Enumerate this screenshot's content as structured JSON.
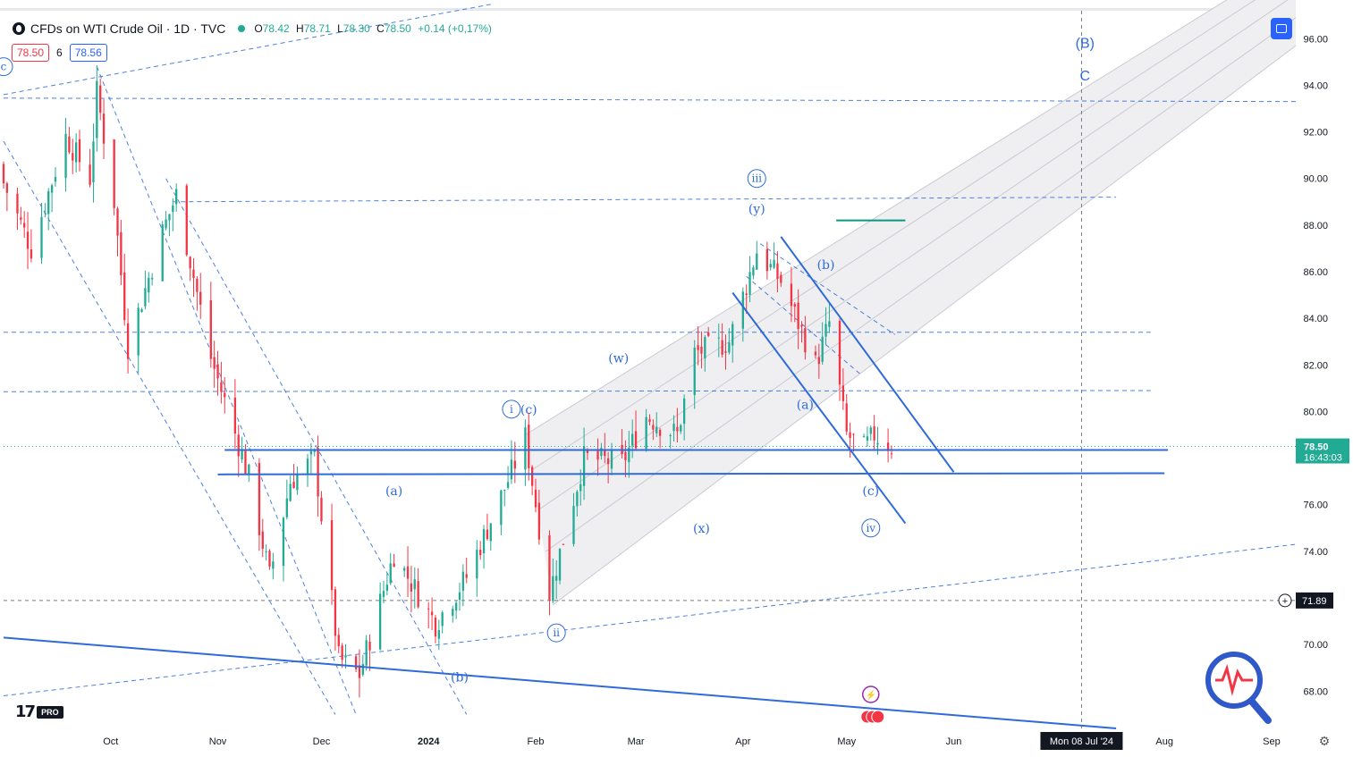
{
  "header": {
    "title": "CFDs on WTI Crude Oil · 1D · TVC",
    "ohlc": {
      "o_label": "O",
      "o": "78.42",
      "h_label": "H",
      "h": "78.71",
      "l_label": "L",
      "l": "78.30",
      "c_label": "C",
      "c": "78.50",
      "change": "+0.14 (+0,17%)"
    },
    "bid": "78.50",
    "spread": "6",
    "ask": "78.56"
  },
  "logo": {
    "brand": "17",
    "badge": "PRO"
  },
  "colors": {
    "up": "#22ab94",
    "down": "#f23645",
    "accent": "#2962ff",
    "line": "#2f6bd8",
    "channel_fill": "#efeff2",
    "text": "#131722"
  },
  "chart_data": {
    "type": "candlestick",
    "ylim": [
      66.4,
      97.2
    ],
    "y_ticks": [
      "96.00",
      "94.00",
      "92.00",
      "90.00",
      "88.00",
      "86.00",
      "84.00",
      "82.00",
      "80.00",
      "78.00",
      "76.00",
      "74.00",
      "72.00",
      "70.00",
      "68.00"
    ],
    "x_tick_labels": [
      {
        "label": "Oct",
        "date": "2023-10-01"
      },
      {
        "label": "Nov",
        "date": "2023-11-01"
      },
      {
        "label": "Dec",
        "date": "2023-12-01"
      },
      {
        "label": "2024",
        "date": "2024-01-01"
      },
      {
        "label": "Feb",
        "date": "2024-02-01"
      },
      {
        "label": "Mar",
        "date": "2024-03-01"
      },
      {
        "label": "Apr",
        "date": "2024-04-01"
      },
      {
        "label": "May",
        "date": "2024-05-01"
      },
      {
        "label": "Jun",
        "date": "2024-06-01"
      },
      {
        "label": "Aug",
        "date": "2024-08-01"
      },
      {
        "label": "Sep",
        "date": "2024-09-01"
      }
    ],
    "x_start": "2023-08-31",
    "x_end": "2024-09-08",
    "last_price": "78.50",
    "countdown": "16:43:03",
    "crosshair_price": "71.89",
    "crosshair_date_label": "Mon 08 Jul '24",
    "crosshair_date": "2024-07-08",
    "anchors": [
      {
        "date": "2023-08-31",
        "close": 89.8
      },
      {
        "date": "2023-09-08",
        "close": 87.0
      },
      {
        "date": "2023-09-18",
        "close": 91.8
      },
      {
        "date": "2023-09-25",
        "close": 90.0
      },
      {
        "date": "2023-09-27",
        "close": 93.7
      },
      {
        "date": "2023-10-02",
        "close": 89.0
      },
      {
        "date": "2023-10-06",
        "close": 82.8
      },
      {
        "date": "2023-10-16",
        "close": 87.7
      },
      {
        "date": "2023-10-20",
        "close": 89.3
      },
      {
        "date": "2023-10-30",
        "close": 82.3
      },
      {
        "date": "2023-11-10",
        "close": 77.2
      },
      {
        "date": "2023-11-16",
        "close": 72.9
      },
      {
        "date": "2023-11-22",
        "close": 77.0
      },
      {
        "date": "2023-11-29",
        "close": 78.0
      },
      {
        "date": "2023-12-06",
        "close": 69.4
      },
      {
        "date": "2023-12-12",
        "close": 68.7
      },
      {
        "date": "2023-12-22",
        "close": 73.9
      },
      {
        "date": "2024-01-03",
        "close": 70.9
      },
      {
        "date": "2024-01-12",
        "close": 72.9
      },
      {
        "date": "2024-01-25",
        "close": 77.4
      },
      {
        "date": "2024-01-29",
        "close": 78.9
      },
      {
        "date": "2024-02-05",
        "close": 72.2
      },
      {
        "date": "2024-02-15",
        "close": 78.0
      },
      {
        "date": "2024-02-26",
        "close": 77.8
      },
      {
        "date": "2024-03-04",
        "close": 79.8
      },
      {
        "date": "2024-03-13",
        "close": 79.0
      },
      {
        "date": "2024-03-18",
        "close": 82.5
      },
      {
        "date": "2024-03-28",
        "close": 83.0
      },
      {
        "date": "2024-04-05",
        "close": 86.9
      },
      {
        "date": "2024-04-12",
        "close": 85.6
      },
      {
        "date": "2024-04-22",
        "close": 82.0
      },
      {
        "date": "2024-04-26",
        "close": 83.8
      },
      {
        "date": "2024-05-01",
        "close": 79.0
      },
      {
        "date": "2024-05-06",
        "close": 78.4
      },
      {
        "date": "2024-05-09",
        "close": 79.0
      },
      {
        "date": "2024-05-14",
        "close": 78.5
      }
    ],
    "wave_labels": [
      {
        "text": "c",
        "date": "2023-08-31",
        "price": 94.8,
        "circled": true
      },
      {
        "text": "(a)",
        "date": "2023-12-22",
        "price": 76.6,
        "circled": false
      },
      {
        "text": "(b)",
        "date": "2024-01-10",
        "price": 68.6,
        "circled": false
      },
      {
        "text": "i",
        "date": "2024-01-25",
        "price": 80.1,
        "circled": true
      },
      {
        "text": "(c)",
        "date": "2024-01-30",
        "price": 80.1,
        "circled": false
      },
      {
        "text": "ii",
        "date": "2024-02-07",
        "price": 70.5,
        "circled": true
      },
      {
        "text": "(w)",
        "date": "2024-02-25",
        "price": 82.3,
        "circled": false
      },
      {
        "text": "(x)",
        "date": "2024-03-20",
        "price": 75.0,
        "circled": false
      },
      {
        "text": "iii",
        "date": "2024-04-05",
        "price": 90.0,
        "circled": true
      },
      {
        "text": "(y)",
        "date": "2024-04-05",
        "price": 88.7,
        "circled": false
      },
      {
        "text": "(b)",
        "date": "2024-04-25",
        "price": 86.3,
        "circled": false
      },
      {
        "text": "(a)",
        "date": "2024-04-19",
        "price": 80.3,
        "circled": false
      },
      {
        "text": "(c)",
        "date": "2024-05-08",
        "price": 76.6,
        "circled": false
      },
      {
        "text": "iv",
        "date": "2024-05-08",
        "price": 75.0,
        "circled": true
      },
      {
        "text": "(B)",
        "date": "2024-07-09",
        "price": 95.8,
        "circled": false
      },
      {
        "text": "C",
        "date": "2024-07-09",
        "price": 94.4,
        "circled": false
      }
    ]
  }
}
